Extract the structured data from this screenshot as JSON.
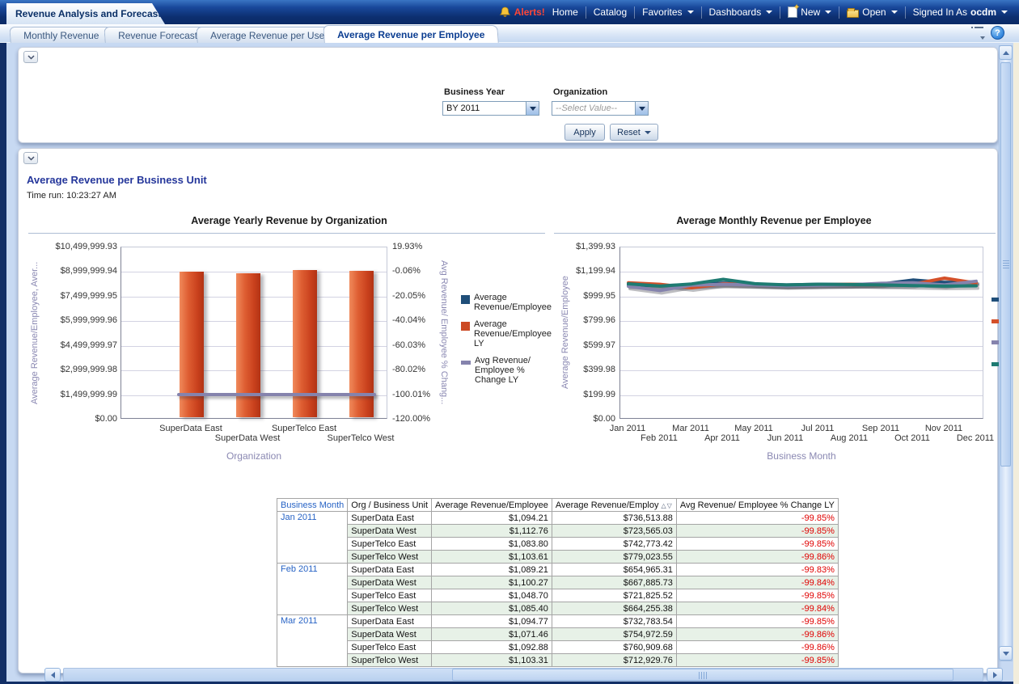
{
  "window": {
    "title": "Revenue Analysis and Forecast"
  },
  "nav": {
    "alerts": "Alerts!",
    "home": "Home",
    "catalog": "Catalog",
    "favorites": "Favorites",
    "dashboards": "Dashboards",
    "new": "New",
    "open": "Open",
    "signed_in_as": "Signed In As",
    "user": "ocdm"
  },
  "tabs": [
    {
      "label": "Monthly Revenue",
      "active": false
    },
    {
      "label": "Revenue Forecast",
      "active": false
    },
    {
      "label": "Average Revenue per User",
      "active": false
    },
    {
      "label": "Average Revenue per Employee",
      "active": true
    }
  ],
  "strip_icons": {
    "options": "page-options",
    "help": "?"
  },
  "filters": {
    "business_year_label": "Business Year",
    "business_year_value": "BY 2011",
    "organization_label": "Organization",
    "organization_value": "--Select Value--",
    "apply_label": "Apply",
    "reset_label": "Reset"
  },
  "section": {
    "title": "Average Revenue per Business Unit",
    "time_run": "Time run: 10:23:27 AM"
  },
  "chart_data": [
    {
      "type": "bar",
      "title": "Average Yearly Revenue by Organization",
      "categories": [
        "SuperData East",
        "SuperData West",
        "SuperTelco East",
        "SuperTelco West"
      ],
      "series": [
        {
          "name": "Average Revenue/Employee",
          "axis": "left",
          "kind": "bar",
          "color": "#1f4e79",
          "values": [
            1094,
            1113,
            1084,
            1104
          ]
        },
        {
          "name": "Average Revenue/Employee LY",
          "axis": "left",
          "kind": "bar",
          "color": "#cc4a24",
          "values": [
            8870000,
            8760000,
            8970000,
            8920000
          ]
        },
        {
          "name": "Avg Revenue/ Employee % Change LY",
          "axis": "right",
          "kind": "line",
          "color": "#8583ad",
          "values": [
            -99.85,
            -99.85,
            -99.86,
            -99.85
          ]
        }
      ],
      "legend": [
        "Average\nRevenue/Employee",
        "Average\nRevenue/Employee\nLY",
        "Avg Revenue/\nEmployee %\nChange LY"
      ],
      "legend_position": "right",
      "grid": true,
      "xlabel": "Organization",
      "ylabel_left": "Average Revenue/Employee, Aver...",
      "ylabel_right": "Avg Revenue/ Employee % Chang...",
      "ylim_left": [
        0,
        10499999.93
      ],
      "ylim_right": [
        -120.0,
        19.93
      ],
      "yticks_left": [
        "$10,499,999.93",
        "$8,999,999.94",
        "$7,499,999.95",
        "$5,999,999.96",
        "$4,499,999.97",
        "$2,999,999.98",
        "$1,499,999.99",
        "$0.00"
      ],
      "yticks_right": [
        "19.93%",
        "-0.06%",
        "-20.05%",
        "-40.04%",
        "-60.03%",
        "-80.02%",
        "-100.01%",
        "-120.00%"
      ]
    },
    {
      "type": "line",
      "title": "Average Monthly Revenue per Employee",
      "x": [
        "Jan 2011",
        "Feb 2011",
        "Mar 2011",
        "Apr 2011",
        "May 2011",
        "Jun 2011",
        "Jul 2011",
        "Aug 2011",
        "Sep 2011",
        "Oct 2011",
        "Nov 2011",
        "Dec 2011"
      ],
      "series": [
        {
          "name": "SuperData East",
          "color": "#1f4e79",
          "values": [
            1094,
            1089,
            1095,
            1110,
            1100,
            1095,
            1100,
            1098,
            1102,
            1135,
            1115,
            1120
          ]
        },
        {
          "name": "SuperData West",
          "color": "#d4502a",
          "values": [
            1113,
            1100,
            1071,
            1105,
            1098,
            1092,
            1096,
            1100,
            1095,
            1100,
            1150,
            1110
          ]
        },
        {
          "name": "SuperTelco East",
          "color": "#8583ad",
          "values": [
            1084,
            1049,
            1093,
            1100,
            1095,
            1088,
            1092,
            1096,
            1108,
            1112,
            1095,
            1125
          ]
        },
        {
          "name": "SuperTelco West",
          "color": "#1e7b72",
          "values": [
            1104,
            1085,
            1103,
            1140,
            1105,
            1095,
            1100,
            1098,
            1095,
            1090,
            1085,
            1088
          ]
        }
      ],
      "legend_position": "right-swatches-only",
      "grid": true,
      "xlabel": "Business Month",
      "ylabel": "Average Revenue/Employee",
      "ylim": [
        0,
        1399.93
      ],
      "yticks": [
        "$1,399.93",
        "$1,199.94",
        "$999.95",
        "$799.96",
        "$599.97",
        "$399.98",
        "$199.99",
        "$0.00"
      ]
    }
  ],
  "table": {
    "headers": [
      "Business Month",
      "Org / Business Unit",
      "Average Revenue/Employee",
      "Average Revenue/Employ",
      "Avg Revenue/ Employee % Change LY"
    ],
    "sort_indicator": "△▽",
    "groups": [
      {
        "month": "Jan 2011",
        "rows": [
          {
            "org": "SuperData East",
            "avg": "$1,094.21",
            "avg_ly": "$736,513.88",
            "pct": "-99.85%"
          },
          {
            "org": "SuperData West",
            "avg": "$1,112.76",
            "avg_ly": "$723,565.03",
            "pct": "-99.85%"
          },
          {
            "org": "SuperTelco East",
            "avg": "$1,083.80",
            "avg_ly": "$742,773.42",
            "pct": "-99.85%"
          },
          {
            "org": "SuperTelco West",
            "avg": "$1,103.61",
            "avg_ly": "$779,023.55",
            "pct": "-99.86%"
          }
        ]
      },
      {
        "month": "Feb 2011",
        "rows": [
          {
            "org": "SuperData East",
            "avg": "$1,089.21",
            "avg_ly": "$654,965.31",
            "pct": "-99.83%"
          },
          {
            "org": "SuperData West",
            "avg": "$1,100.27",
            "avg_ly": "$667,885.73",
            "pct": "-99.84%"
          },
          {
            "org": "SuperTelco East",
            "avg": "$1,048.70",
            "avg_ly": "$721,825.52",
            "pct": "-99.85%"
          },
          {
            "org": "SuperTelco West",
            "avg": "$1,085.40",
            "avg_ly": "$664,255.38",
            "pct": "-99.84%"
          }
        ]
      },
      {
        "month": "Mar 2011",
        "rows": [
          {
            "org": "SuperData East",
            "avg": "$1,094.77",
            "avg_ly": "$732,783.54",
            "pct": "-99.85%"
          },
          {
            "org": "SuperData West",
            "avg": "$1,071.46",
            "avg_ly": "$754,972.59",
            "pct": "-99.86%"
          },
          {
            "org": "SuperTelco East",
            "avg": "$1,092.88",
            "avg_ly": "$760,909.68",
            "pct": "-99.86%"
          },
          {
            "org": "SuperTelco West",
            "avg": "$1,103.31",
            "avg_ly": "$712,929.76",
            "pct": "-99.85%"
          }
        ]
      }
    ]
  },
  "colors": {
    "brand_bar": "#0d2f70",
    "accent_blue": "#0b3d91",
    "alert_red": "#ff4636",
    "bar_orange": "#cc4a24",
    "series_navy": "#1f4e79",
    "series_purple": "#8583ad",
    "series_teal": "#1e7b72",
    "table_stripe_green": "#e7f1e7",
    "pct_red": "#e00000",
    "page_bg": "#c7d9f2"
  }
}
